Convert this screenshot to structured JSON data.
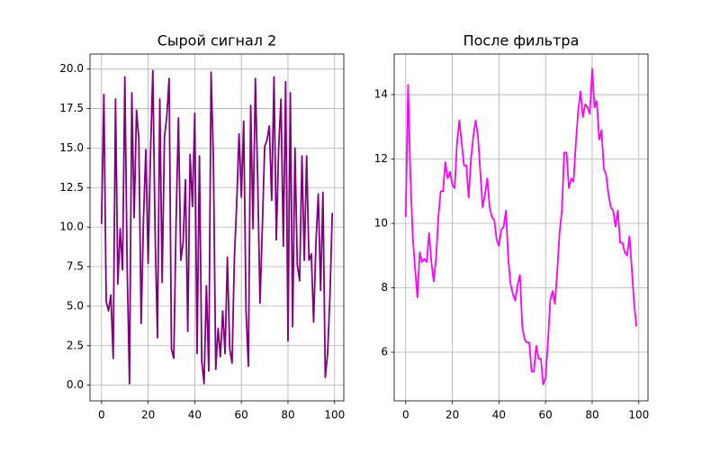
{
  "chart_data": [
    {
      "type": "line",
      "title": "Сырой сигнал 2",
      "color": "#800080",
      "grid": true,
      "x": [
        0,
        1,
        2,
        3,
        4,
        5,
        6,
        7,
        8,
        9,
        10,
        11,
        12,
        13,
        14,
        15,
        16,
        17,
        18,
        19,
        20,
        21,
        22,
        23,
        24,
        25,
        26,
        27,
        28,
        29,
        30,
        31,
        32,
        33,
        34,
        35,
        36,
        37,
        38,
        39,
        40,
        41,
        42,
        43,
        44,
        45,
        46,
        47,
        48,
        49,
        50,
        51,
        52,
        53,
        54,
        55,
        56,
        57,
        58,
        59,
        60,
        61,
        62,
        63,
        64,
        65,
        66,
        67,
        68,
        69,
        70,
        71,
        72,
        73,
        74,
        75,
        76,
        77,
        78,
        79,
        80,
        81,
        82,
        83,
        84,
        85,
        86,
        87,
        88,
        89,
        90,
        91,
        92,
        93,
        94,
        95,
        96,
        97,
        98,
        99
      ],
      "values": [
        10.2,
        18.4,
        5.3,
        4.7,
        5.7,
        1.7,
        18.1,
        6.4,
        9.9,
        7.3,
        19.5,
        7.5,
        0.1,
        18.5,
        10.6,
        17.4,
        15.6,
        3.9,
        10.5,
        14.9,
        7.7,
        14.6,
        19.9,
        9.5,
        3.0,
        18.1,
        6.5,
        15.7,
        17.0,
        19.4,
        2.3,
        1.7,
        10.4,
        16.9,
        7.9,
        9.0,
        13.0,
        3.4,
        14.6,
        11.3,
        17.2,
        2.0,
        14.5,
        1.5,
        0.1,
        6.3,
        0.9,
        19.8,
        14.3,
        1.0,
        3.6,
        1.8,
        4.7,
        2.0,
        8.1,
        2.3,
        1.4,
        8.0,
        11.5,
        15.9,
        11.9,
        16.7,
        4.7,
        1.2,
        17.7,
        9.9,
        19.4,
        13.0,
        5.2,
        10.0,
        15.1,
        15.5,
        16.4,
        11.7,
        19.5,
        9.2,
        15.0,
        18.1,
        8.8,
        19.2,
        2.8,
        18.5,
        3.7,
        15.0,
        7.6,
        6.6,
        14.5,
        7.9,
        14.5,
        7.9,
        8.3,
        4.0,
        9.0,
        12.1,
        6.0,
        12.2,
        0.5,
        2.0,
        5.6,
        10.9
      ],
      "xlim": [
        -4.95,
        103.95
      ],
      "xticks": [
        0,
        20,
        40,
        60,
        80,
        100
      ],
      "ylim": [
        -0.99,
        20.95
      ],
      "yticks": [
        {
          "value": 0,
          "label": "0.0"
        },
        {
          "value": 2.5,
          "label": "2.5"
        },
        {
          "value": 5,
          "label": "5.0"
        },
        {
          "value": 7.5,
          "label": "7.5"
        },
        {
          "value": 10,
          "label": "10.0"
        },
        {
          "value": 12.5,
          "label": "12.5"
        },
        {
          "value": 15,
          "label": "15.0"
        },
        {
          "value": 17.5,
          "label": "17.5"
        },
        {
          "value": 20,
          "label": "20.0"
        }
      ]
    },
    {
      "type": "line",
      "title": "После фильтра",
      "color": "#ff00ff",
      "grid": true,
      "x": [
        0,
        1,
        2,
        3,
        4,
        5,
        6,
        7,
        8,
        9,
        10,
        11,
        12,
        13,
        14,
        15,
        16,
        17,
        18,
        19,
        20,
        21,
        22,
        23,
        24,
        25,
        26,
        27,
        28,
        29,
        30,
        31,
        32,
        33,
        34,
        35,
        36,
        37,
        38,
        39,
        40,
        41,
        42,
        43,
        44,
        45,
        46,
        47,
        48,
        49,
        50,
        51,
        52,
        53,
        54,
        55,
        56,
        57,
        58,
        59,
        60,
        61,
        62,
        63,
        64,
        65,
        66,
        67,
        68,
        69,
        70,
        71,
        72,
        73,
        74,
        75,
        76,
        77,
        78,
        79,
        80,
        81,
        82,
        83,
        84,
        85,
        86,
        87,
        88,
        89,
        90,
        91,
        92,
        93,
        94,
        95,
        96,
        97,
        98,
        99
      ],
      "values": [
        10.2,
        14.3,
        11.5,
        9.6,
        8.6,
        7.7,
        9.1,
        8.8,
        8.9,
        8.8,
        9.7,
        8.8,
        8.2,
        8.9,
        10.2,
        11.0,
        11.0,
        11.9,
        11.4,
        11.6,
        11.2,
        11.1,
        12.5,
        13.2,
        12.5,
        11.8,
        11.8,
        10.8,
        12.0,
        12.7,
        13.2,
        12.7,
        11.6,
        10.5,
        10.9,
        11.4,
        10.5,
        10.2,
        10.1,
        9.5,
        9.3,
        9.8,
        9.9,
        10.4,
        8.9,
        8.1,
        7.8,
        7.6,
        8.1,
        8.4,
        6.8,
        6.4,
        6.3,
        6.3,
        5.4,
        5.4,
        6.2,
        5.8,
        5.8,
        5.0,
        5.2,
        6.3,
        7.6,
        7.9,
        7.5,
        8.5,
        9.7,
        10.4,
        12.2,
        12.2,
        11.1,
        11.4,
        11.3,
        12.5,
        13.5,
        14.1,
        13.3,
        13.7,
        13.6,
        13.4,
        14.8,
        13.6,
        13.8,
        12.6,
        12.9,
        11.7,
        11.5,
        10.9,
        10.5,
        10.4,
        9.9,
        10.4,
        9.4,
        9.4,
        9.1,
        9.0,
        9.6,
        8.6,
        7.5,
        6.8
      ],
      "xlim": [
        -4.95,
        103.95
      ],
      "xticks": [
        0,
        20,
        40,
        60,
        80,
        100
      ],
      "ylim": [
        4.49,
        15.26
      ],
      "yticks": [
        6,
        8,
        10,
        12,
        14
      ]
    }
  ]
}
